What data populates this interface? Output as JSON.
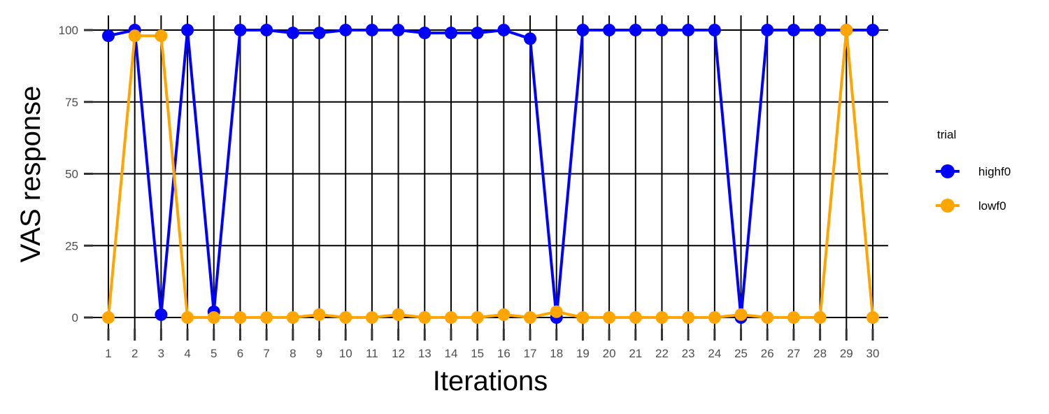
{
  "chart_data": {
    "type": "line",
    "title": "",
    "xlabel": "Iterations",
    "ylabel": "VAS response",
    "x": [
      1,
      2,
      3,
      4,
      5,
      6,
      7,
      8,
      9,
      10,
      11,
      12,
      13,
      14,
      15,
      16,
      17,
      18,
      19,
      20,
      21,
      22,
      23,
      24,
      25,
      26,
      27,
      28,
      29,
      30
    ],
    "xlim": [
      1,
      30
    ],
    "ylim": [
      -7,
      105
    ],
    "yticks": [
      0,
      25,
      50,
      75,
      100
    ],
    "grid": true,
    "legend": {
      "title": "trial",
      "placement": "right"
    },
    "series": [
      {
        "name": "highf0",
        "color": "#0000ff",
        "values": [
          98,
          100,
          1,
          100,
          2,
          100,
          100,
          99,
          99,
          100,
          100,
          100,
          99,
          99,
          99,
          100,
          97,
          0,
          100,
          100,
          100,
          100,
          100,
          100,
          0,
          100,
          100,
          100,
          100,
          100
        ]
      },
      {
        "name": "lowf0",
        "color": "#ffa500",
        "values": [
          0,
          98,
          98,
          0,
          0,
          0,
          0,
          0,
          1,
          0,
          0,
          1,
          0,
          0,
          0,
          1,
          0,
          2,
          0,
          0,
          0,
          0,
          0,
          0,
          1,
          0,
          0,
          0,
          100,
          0
        ]
      }
    ]
  }
}
